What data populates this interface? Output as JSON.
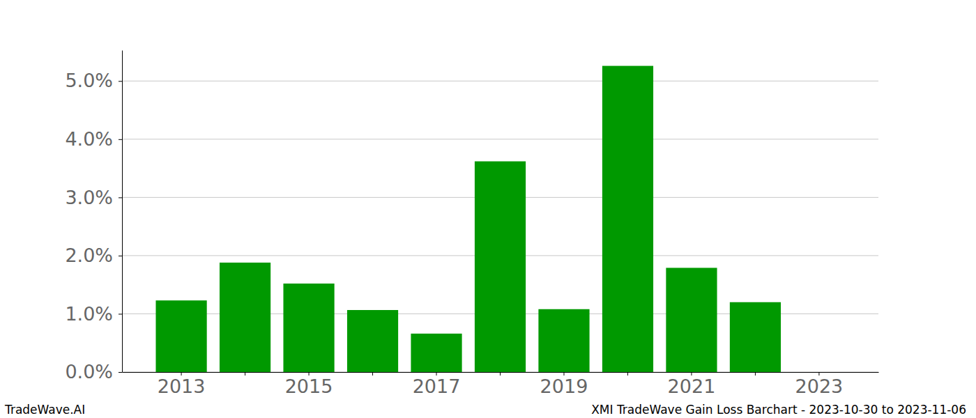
{
  "chart_data": {
    "type": "bar",
    "title": "XMI TradeWave Gain Loss Barchart - 2023-10-30 to 2023-11-06",
    "annotations": [
      "TradeWave.AI"
    ],
    "categories": [
      "2013",
      null,
      "2015",
      null,
      "2017",
      null,
      "2019",
      null,
      "2021",
      null,
      "2023"
    ],
    "values": [
      1.23,
      1.88,
      1.52,
      1.065,
      0.66,
      3.62,
      1.08,
      5.26,
      1.79,
      1.2,
      null
    ],
    "color": "#009900",
    "ylim": [
      0,
      5.53
    ],
    "yticks": [
      {
        "value": 0,
        "label": "0.0%"
      },
      {
        "value": 1,
        "label": "1.0%"
      },
      {
        "value": 2,
        "label": "2.0%"
      },
      {
        "value": 3,
        "label": "3.0%"
      },
      {
        "value": 4,
        "label": "4.0%"
      },
      {
        "value": 5,
        "label": "5.0%"
      }
    ],
    "grid": true
  }
}
